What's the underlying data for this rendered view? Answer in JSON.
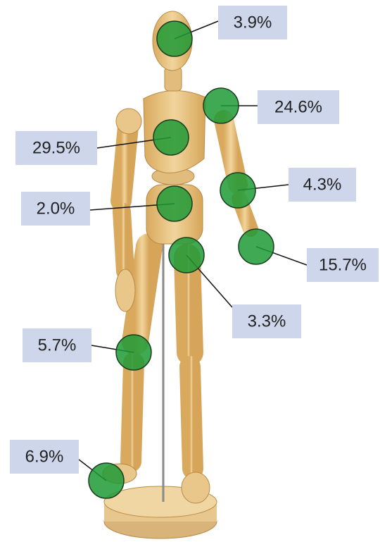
{
  "annotations": [
    "3.9%",
    "24.6%",
    "29.5%",
    "4.3%",
    "2.0%",
    "15.7%",
    "3.3%",
    "5.7%",
    "6.9%"
  ]
}
